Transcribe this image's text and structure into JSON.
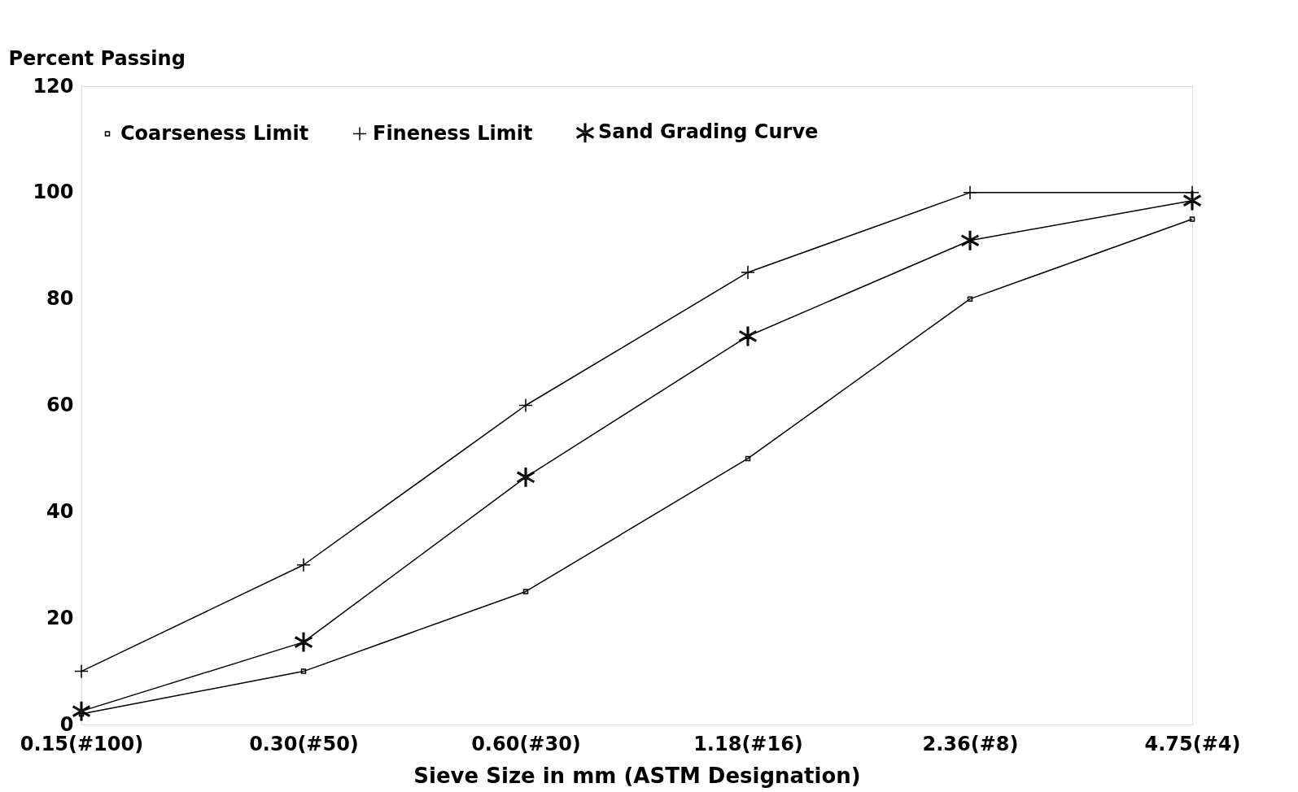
{
  "chart_data": {
    "type": "line",
    "xlabel": "Sieve Size in mm (ASTM Designation)",
    "ylabel": "Percent Passing",
    "categories": [
      "0.15(#100)",
      "0.30(#50)",
      "0.60(#30)",
      "1.18(#16)",
      "2.36(#8)",
      "4.75(#4)"
    ],
    "series": [
      {
        "name": "Coarseness Limit",
        "color": "#000000",
        "marker": "square",
        "values": [
          2,
          10,
          25,
          50,
          80,
          95
        ]
      },
      {
        "name": "Fineness Limit",
        "color": "#000000",
        "marker": "cross",
        "values": [
          10,
          30,
          60,
          85,
          100,
          100
        ]
      },
      {
        "name": "Sand Grading Curve",
        "color": "#000000",
        "marker": "star",
        "values": [
          2.5,
          15.5,
          46.5,
          73,
          91,
          98.5
        ]
      }
    ],
    "ylim": [
      0,
      120
    ],
    "yticks": [
      0,
      20,
      40,
      60,
      80,
      100,
      120
    ],
    "grid": false,
    "legend": "top",
    "line_style": "solid"
  }
}
